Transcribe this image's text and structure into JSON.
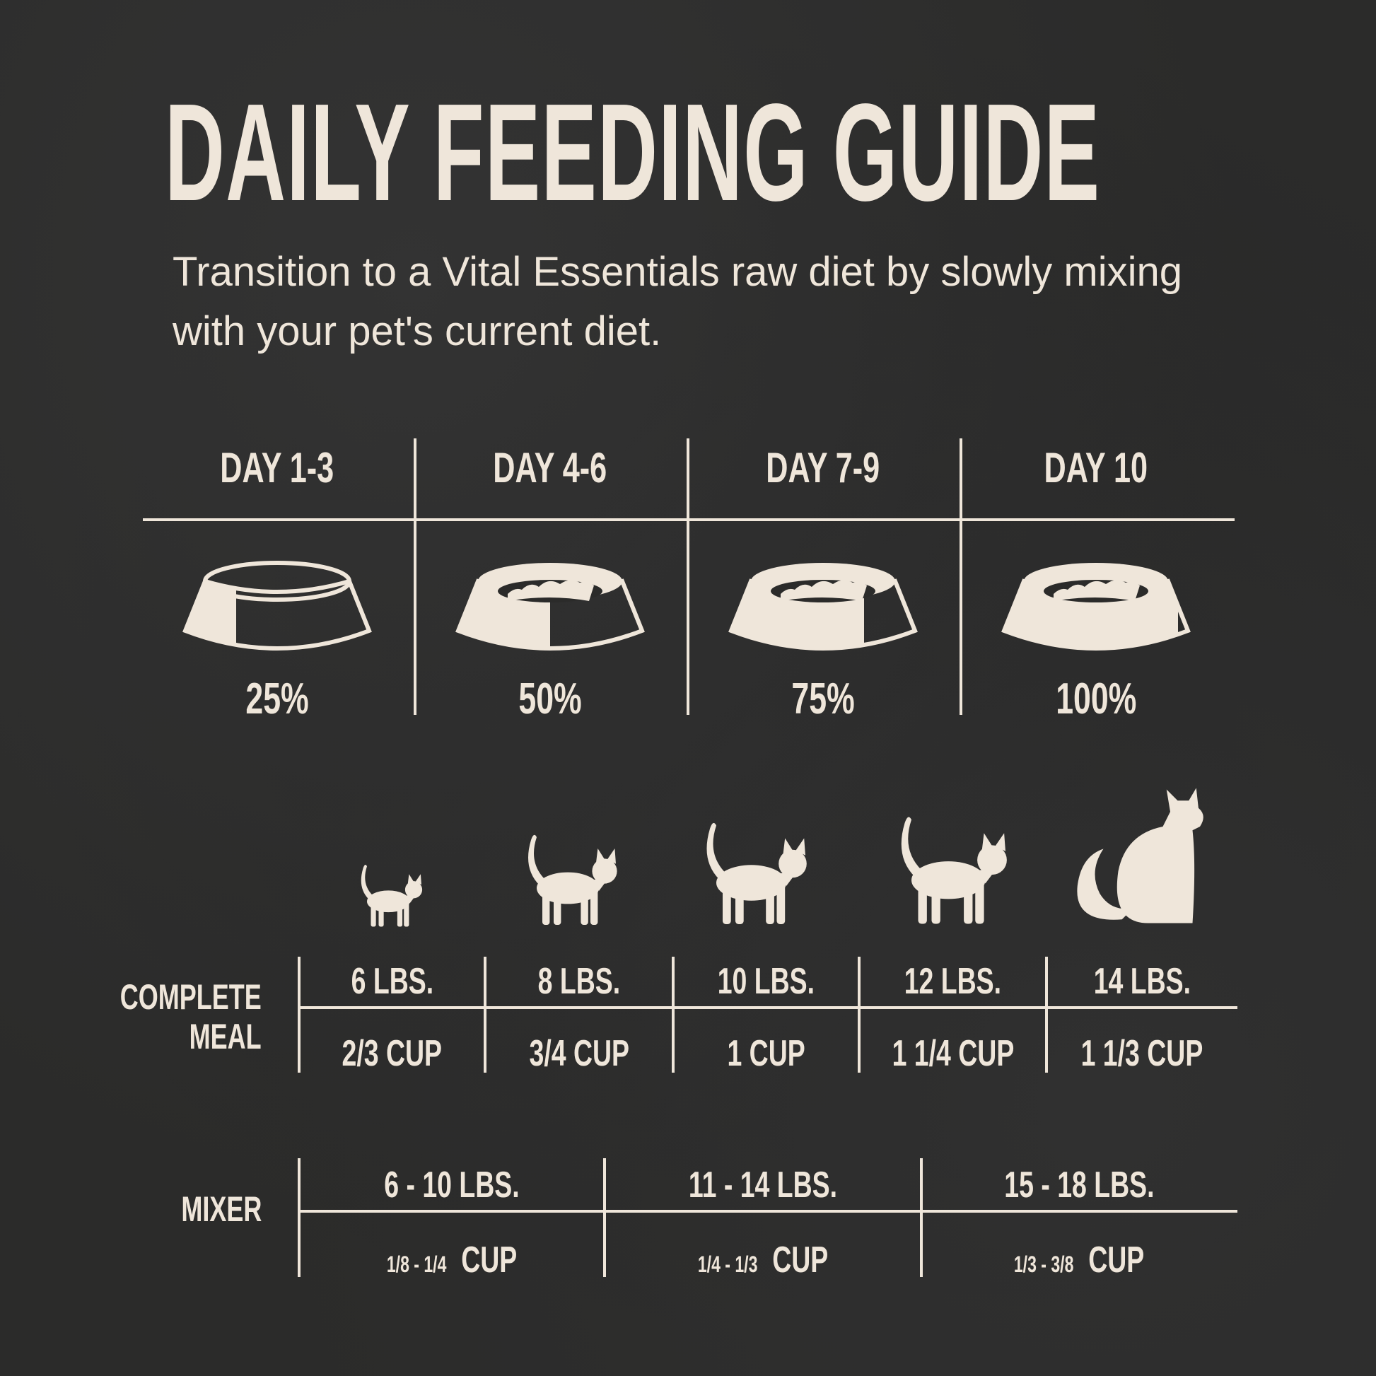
{
  "title": "DAILY FEEDING GUIDE",
  "subtitle": "Transition to a Vital Essentials raw diet by slowly mixing with your pet's current diet.",
  "colors": {
    "background": "#2b2b2a",
    "cream": "#efe6da"
  },
  "transition": [
    {
      "day": "DAY 1-3",
      "percent_label": "25%",
      "percent": 25,
      "icon": "food-bowl-icon"
    },
    {
      "day": "DAY 4-6",
      "percent_label": "50%",
      "percent": 50,
      "icon": "food-bowl-icon"
    },
    {
      "day": "DAY 7-9",
      "percent_label": "75%",
      "percent": 75,
      "icon": "food-bowl-icon"
    },
    {
      "day": "DAY 10",
      "percent_label": "100%",
      "percent": 100,
      "icon": "food-bowl-icon"
    }
  ],
  "complete_meal": {
    "label_line1": "COMPLETE",
    "label_line2": "MEAL",
    "columns": [
      {
        "weight": "6 LBS.",
        "amount": "2/3 CUP",
        "icon": "kitten-icon"
      },
      {
        "weight": "8 LBS.",
        "amount": "3/4 CUP",
        "icon": "young-cat-icon"
      },
      {
        "weight": "10 LBS.",
        "amount": "1 CUP",
        "icon": "cat-stretching-icon"
      },
      {
        "weight": "12 LBS.",
        "amount": "1 1/4 CUP",
        "icon": "cat-walking-icon"
      },
      {
        "weight": "14 LBS.",
        "amount": "1 1/3 CUP",
        "icon": "cat-sitting-icon"
      }
    ]
  },
  "mixer": {
    "label": "MIXER",
    "columns": [
      {
        "weight": "6 - 10 LBS.",
        "fraction": "1/8 - 1/4",
        "unit": "CUP"
      },
      {
        "weight": "11 -  14 LBS.",
        "fraction": "1/4 - 1/3",
        "unit": "CUP"
      },
      {
        "weight": "15 - 18 LBS.",
        "fraction": "1/3 - 3/8",
        "unit": "CUP"
      }
    ]
  }
}
